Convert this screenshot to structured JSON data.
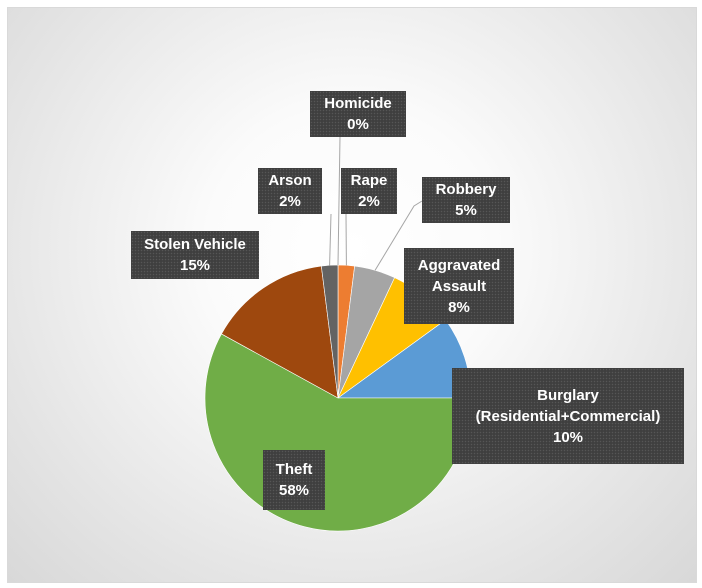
{
  "chart_data": {
    "type": "pie",
    "title": "",
    "legend": "none",
    "start_angle_deg": 0,
    "direction": "clockwise",
    "slices": [
      {
        "name": "Homicide",
        "value": 0,
        "label": "0%",
        "color": "#4472c4"
      },
      {
        "name": "Rape",
        "value": 2,
        "label": "2%",
        "color": "#ed7d31"
      },
      {
        "name": "Robbery",
        "value": 5,
        "label": "5%",
        "color": "#a5a5a5"
      },
      {
        "name": "Aggravated Assault",
        "label_lines": [
          "Aggravated",
          "Assault"
        ],
        "value": 8,
        "label": "8%",
        "color": "#ffc000"
      },
      {
        "name": "Burglary (Residential+Commercial)",
        "label_lines": [
          "Burglary",
          "(Residential+Commercial)"
        ],
        "value": 10,
        "label": "10%",
        "color": "#5b9bd5"
      },
      {
        "name": "Theft",
        "value": 58,
        "label": "58%",
        "color": "#70ad47"
      },
      {
        "name": "Stolen Vehicle",
        "value": 15,
        "label": "15%",
        "color": "#9e480e"
      },
      {
        "name": "Arson",
        "value": 2,
        "label": "2%",
        "color": "#636363"
      }
    ]
  }
}
